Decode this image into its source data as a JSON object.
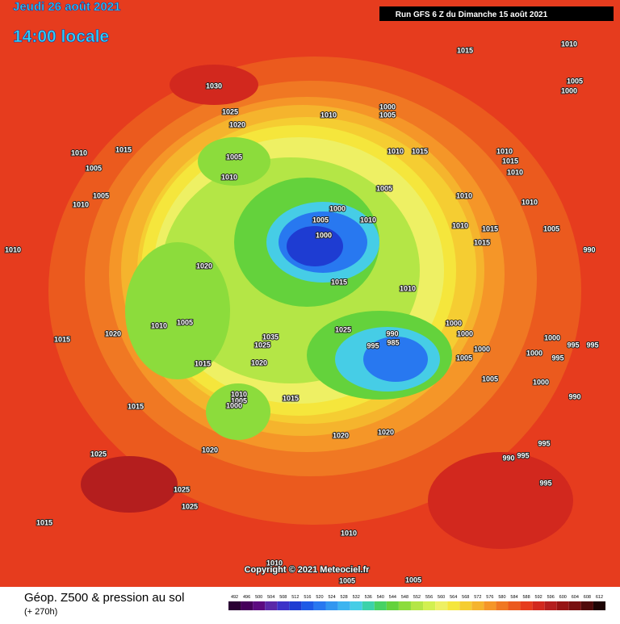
{
  "header": {
    "date": "Jeudi 26 août 2021",
    "time": "14:00 locale",
    "run": "Run GFS 6 Z du Dimanche 15 août 2021"
  },
  "map": {
    "pressure_labels": [
      1030,
      1025,
      1020,
      1015,
      1005,
      1000,
      1010,
      1000,
      1005,
      1010,
      1015,
      1010,
      1005,
      1005,
      1010,
      1010,
      1005,
      1010,
      1005,
      1010,
      1015,
      1010,
      1015,
      1010,
      1010,
      1010,
      1000,
      1005,
      1010,
      1000,
      1010,
      1015,
      1015,
      1005,
      1020,
      1015,
      1010,
      990,
      1010,
      1005,
      1020,
      1015,
      1025,
      1035,
      1025,
      990,
      985,
      995,
      1000,
      1000,
      1000,
      1005,
      1000,
      995,
      995,
      1015,
      1020,
      1000,
      995,
      1005,
      1000,
      990,
      1010,
      1005,
      1000,
      1015,
      1015,
      1020,
      1020,
      1020,
      1025,
      995,
      995,
      990,
      995,
      1025,
      1025,
      1015,
      1010,
      1010,
      1005,
      1005
    ]
  },
  "footer": {
    "title": "Géop. Z500 & pression au sol",
    "lead": "(+ 270h)",
    "copyright": "Copyright © 2021 Meteociel.fr"
  },
  "legend": {
    "levels": [
      492,
      496,
      500,
      504,
      508,
      512,
      516,
      520,
      524,
      528,
      532,
      536,
      540,
      544,
      548,
      552,
      556,
      560,
      564,
      568,
      572,
      576,
      580,
      584,
      588,
      592,
      596,
      600,
      604,
      608,
      612
    ],
    "colors": [
      "#2a0033",
      "#45005a",
      "#5c0a80",
      "#5a28a8",
      "#3c32c8",
      "#1e3cd2",
      "#1e5ae6",
      "#2878f0",
      "#3296f0",
      "#3cb4f0",
      "#46cde6",
      "#3cd2aa",
      "#46d264",
      "#64d23c",
      "#8cdc3c",
      "#b4e646",
      "#d2f050",
      "#eef064",
      "#f5e63c",
      "#f5cd32",
      "#f5b42d",
      "#f59628",
      "#f07823",
      "#eb5a1e",
      "#e63c1e",
      "#d2281e",
      "#b41e1e",
      "#961414",
      "#780f0f",
      "#500a0a",
      "#1e0505"
    ]
  }
}
